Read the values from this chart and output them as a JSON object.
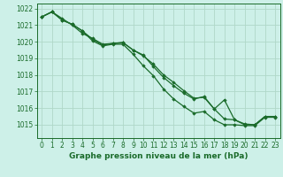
{
  "title": "Graphe pression niveau de la mer (hPa)",
  "background_color": "#cdf0e8",
  "grid_color": "#b0d8c8",
  "line_color": "#1a6b2a",
  "marker_color": "#1a6b2a",
  "xlim": [
    -0.5,
    23.5
  ],
  "ylim": [
    1014.2,
    1022.3
  ],
  "yticks": [
    1015,
    1016,
    1017,
    1018,
    1019,
    1020,
    1021,
    1022
  ],
  "xticks": [
    0,
    1,
    2,
    3,
    4,
    5,
    6,
    7,
    8,
    9,
    10,
    11,
    12,
    13,
    14,
    15,
    16,
    17,
    18,
    19,
    20,
    21,
    22,
    23
  ],
  "series": [
    [
      1021.5,
      1021.8,
      1021.4,
      1021.0,
      1020.5,
      1020.2,
      1019.85,
      1019.9,
      1019.95,
      1019.5,
      1019.2,
      1018.5,
      1017.85,
      1017.35,
      1016.9,
      1016.55,
      1016.7,
      1015.95,
      1016.5,
      1015.3,
      1015.0,
      1015.0,
      1015.5,
      1015.5
    ],
    [
      1021.5,
      1021.8,
      1021.3,
      1021.05,
      1020.65,
      1020.15,
      1019.8,
      1019.9,
      1019.95,
      1019.5,
      1019.15,
      1018.65,
      1018.0,
      1017.55,
      1017.05,
      1016.6,
      1016.65,
      1015.95,
      1015.35,
      1015.3,
      1015.05,
      1015.0,
      1015.5,
      1015.5
    ],
    [
      1021.5,
      1021.8,
      1021.3,
      1021.05,
      1020.65,
      1020.05,
      1019.75,
      1019.85,
      1019.85,
      1019.25,
      1018.55,
      1017.95,
      1017.15,
      1016.55,
      1016.1,
      1015.7,
      1015.8,
      1015.3,
      1015.0,
      1015.0,
      1014.95,
      1014.95,
      1015.45,
      1015.45
    ]
  ],
  "title_fontsize": 6.5,
  "tick_fontsize": 5.5
}
